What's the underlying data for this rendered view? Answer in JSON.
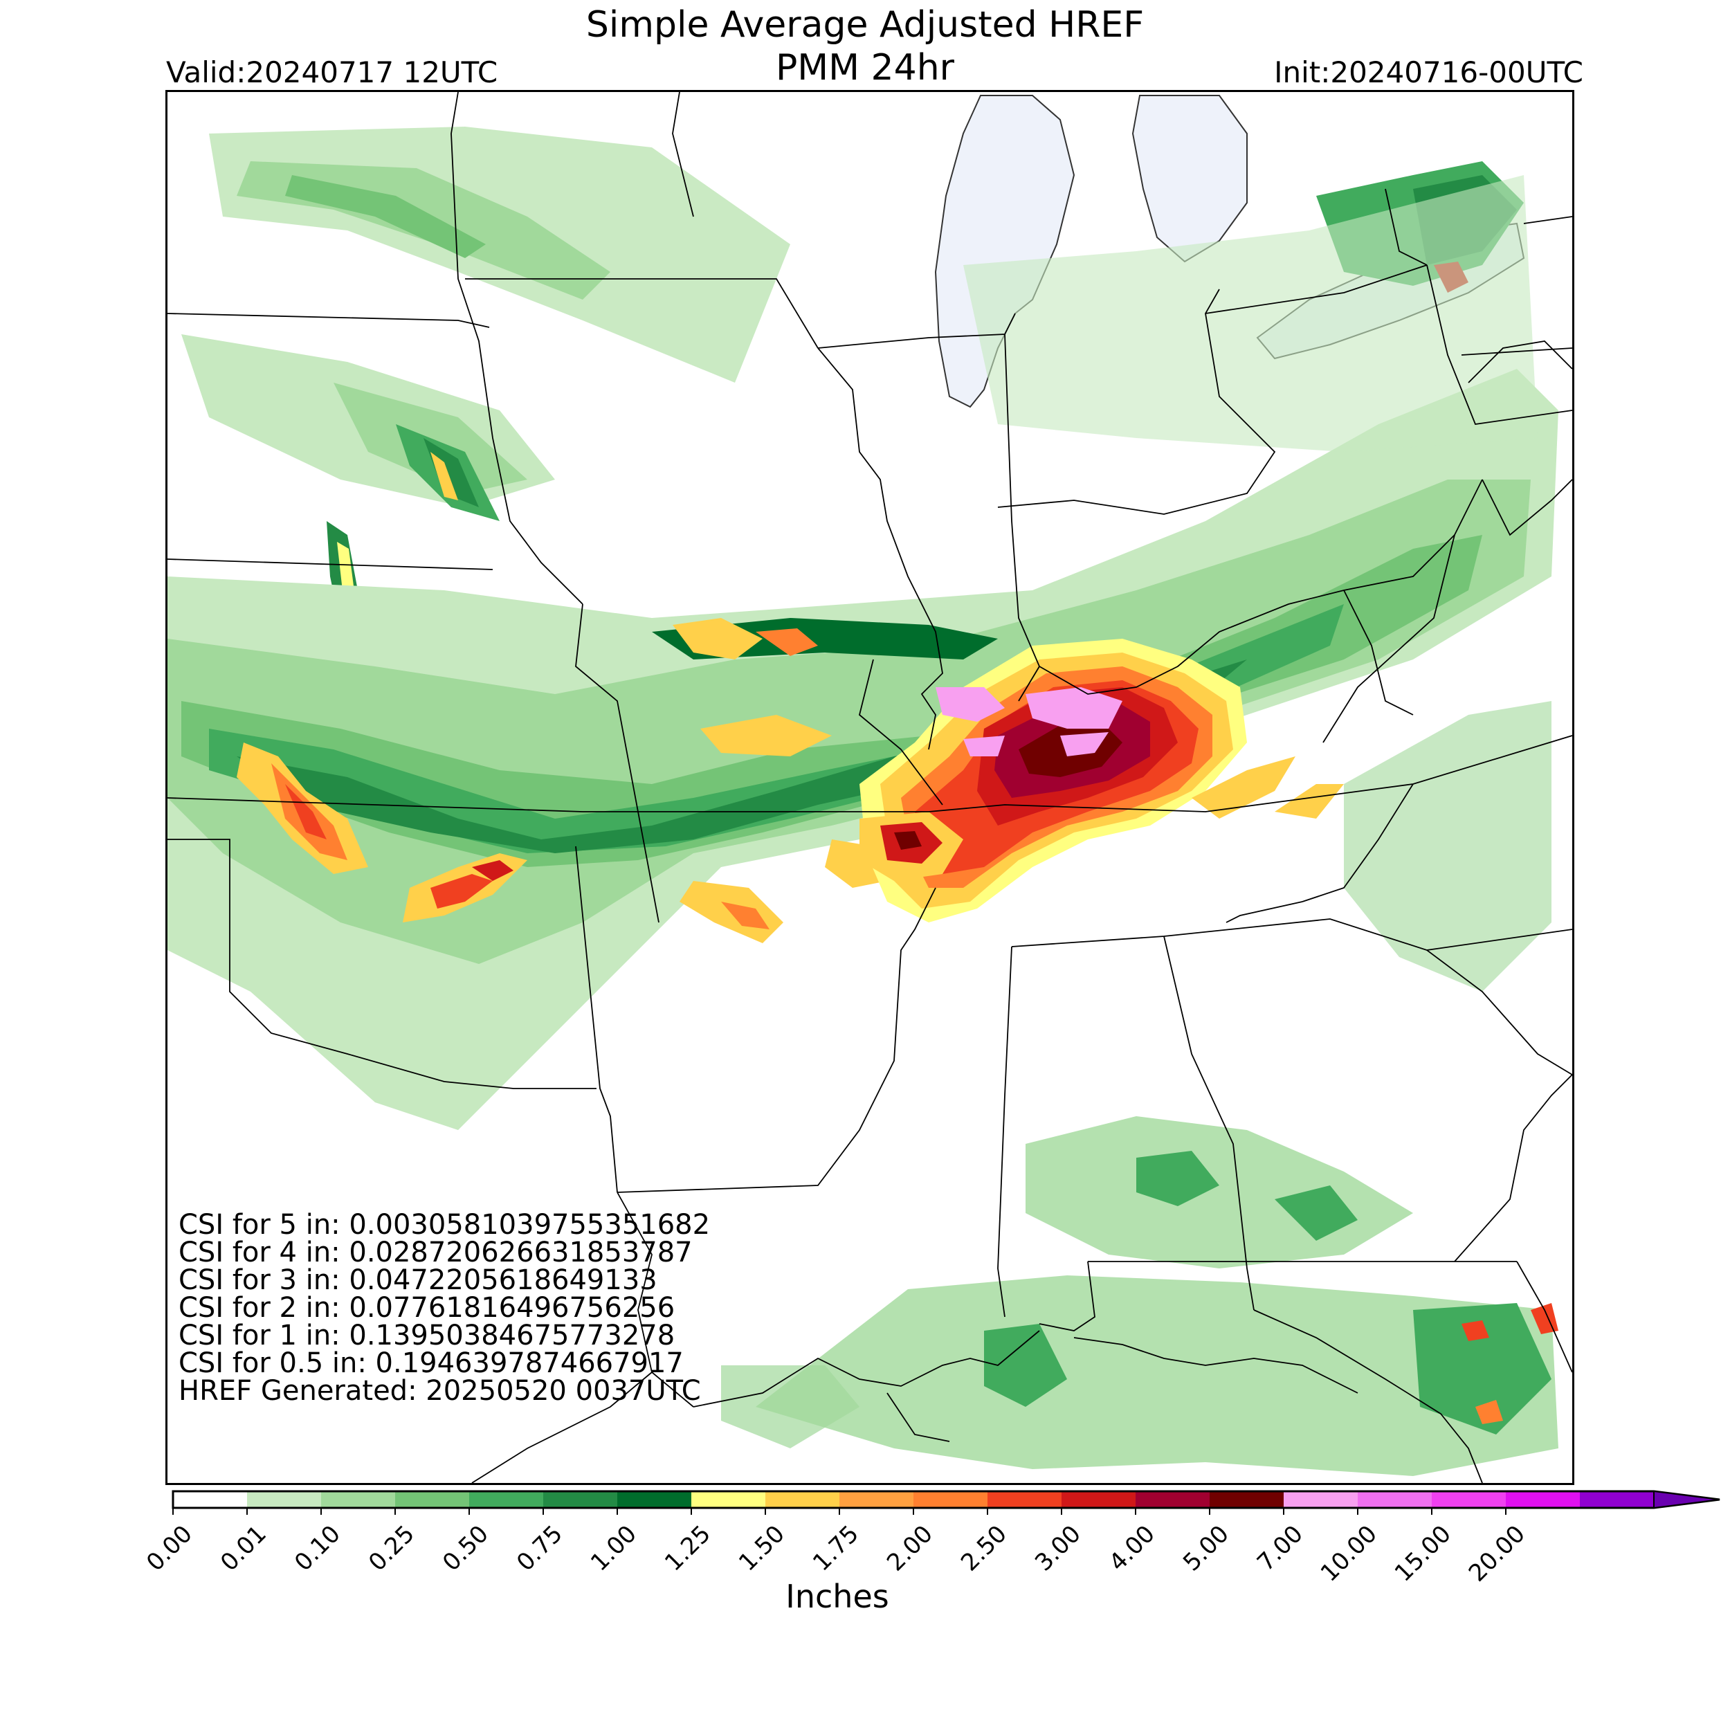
{
  "title": {
    "line1": "Simple Average Adjusted HREF",
    "line2": "PMM 24hr",
    "valid": "Valid:20240717 12UTC",
    "init": "Init:20240716-00UTC"
  },
  "stats": [
    "CSI for 5 in: 0.0030581039755351682",
    "CSI for 4 in: 0.028720626631853787",
    "CSI for 3 in: 0.0472205618649133",
    "CSI for 2 in: 0.07761816496756256",
    "CSI for 1 in: 0.13950384675773278",
    "CSI for 0.5 in: 0.1946397874667917",
    "HREF Generated: 20250520 0037UTC"
  ],
  "colorbar": {
    "label": "Inches",
    "ticks": [
      "0.00",
      "0.01",
      "0.10",
      "0.25",
      "0.50",
      "0.75",
      "1.00",
      "1.25",
      "1.50",
      "1.75",
      "2.00",
      "2.50",
      "3.00",
      "4.00",
      "5.00",
      "7.00",
      "10.00",
      "15.00",
      "20.00"
    ],
    "colors": [
      "#ffffff",
      "#c7e9c0",
      "#a1d99b",
      "#74c476",
      "#41ab5d",
      "#238b45",
      "#006d2c",
      "#ffff80",
      "#ffd04a",
      "#ffa040",
      "#ff8030",
      "#f04020",
      "#d01818",
      "#a00030",
      "#700000",
      "#f8a0f0",
      "#f070f0",
      "#f040f0",
      "#e010f0",
      "#9000d0"
    ],
    "extend_color": "#6a00b0"
  },
  "map": {
    "water_color": "#eef2fa",
    "boundary_color": "#000000"
  }
}
